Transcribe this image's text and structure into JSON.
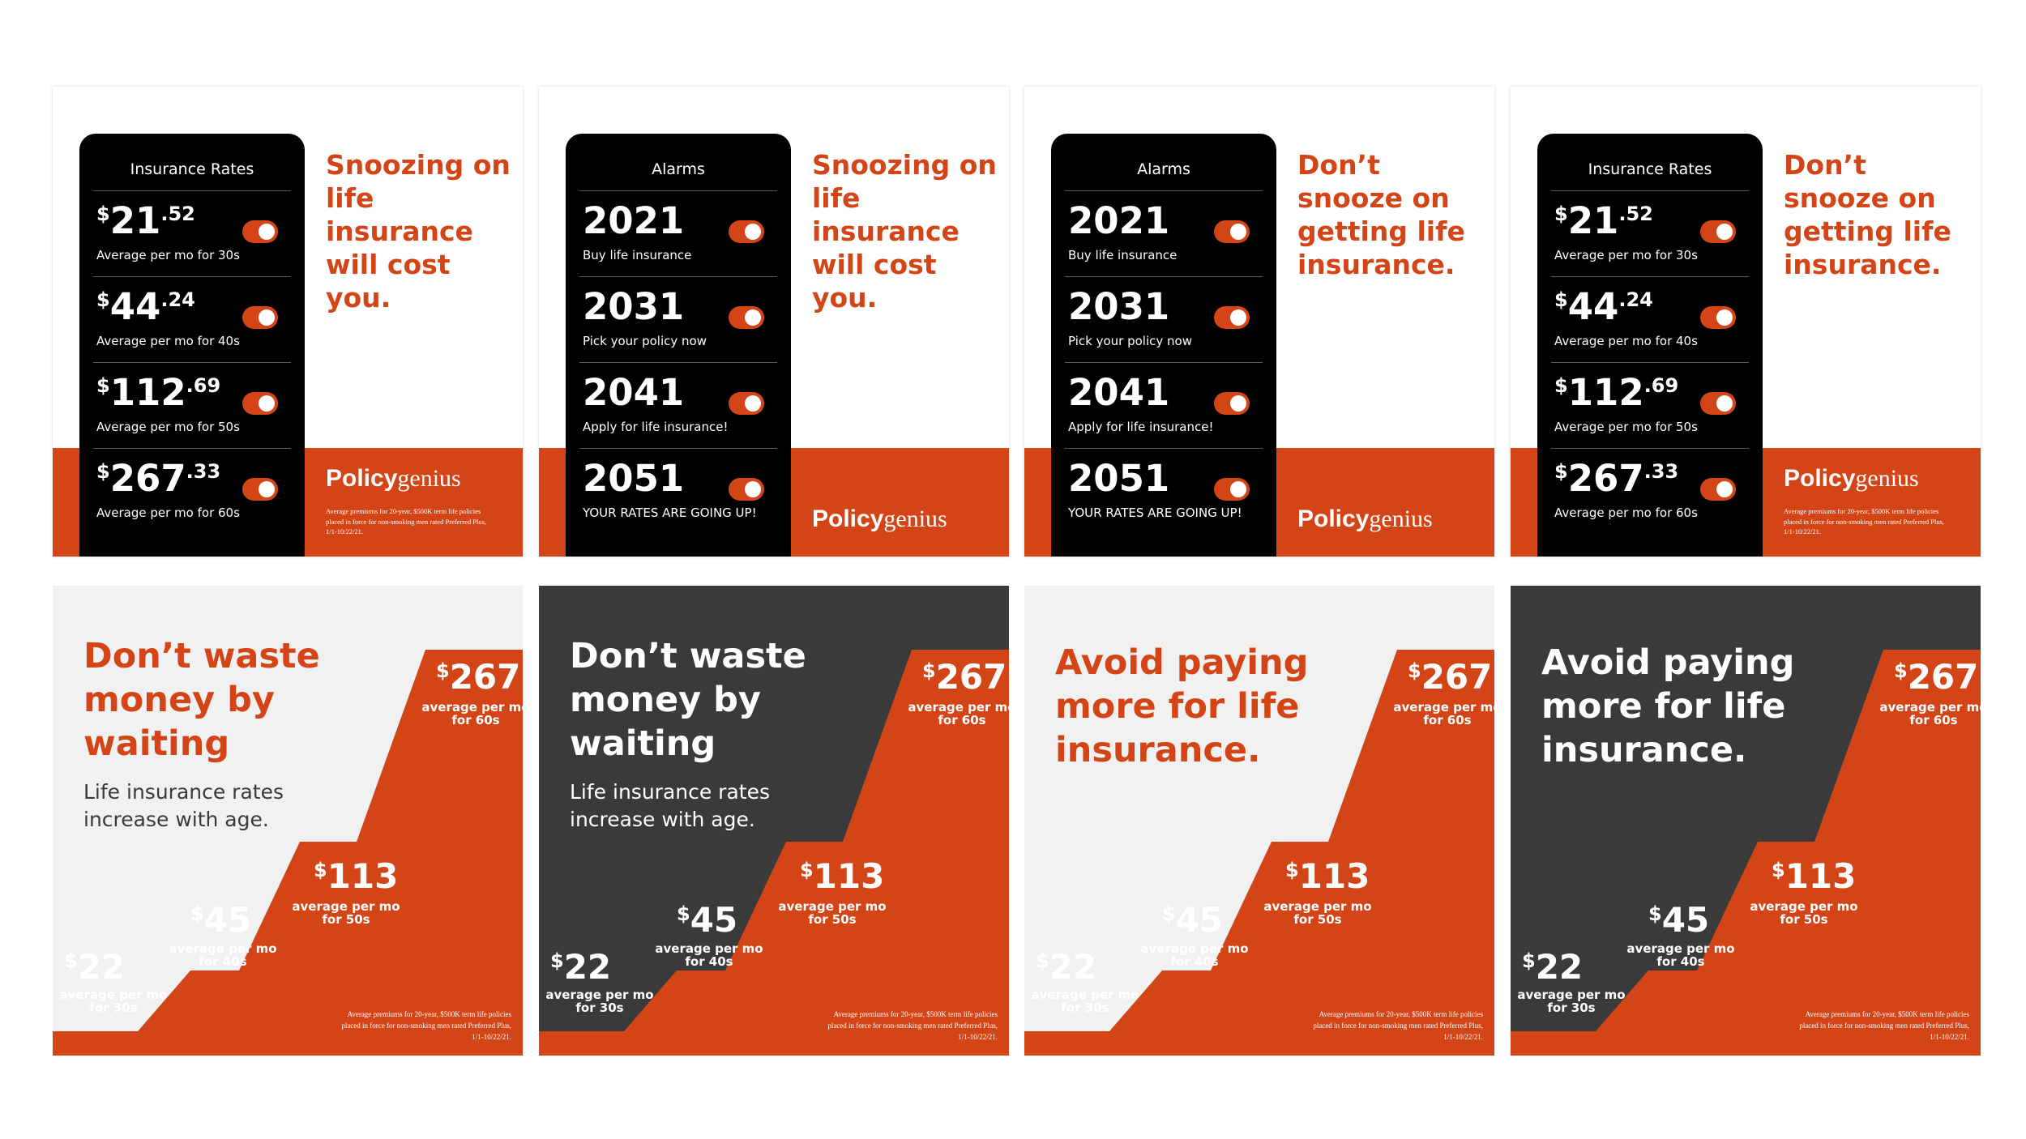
{
  "colors": {
    "orange": "#d34516",
    "black": "#000000",
    "charcoal": "#3a3a3a",
    "light_gray": "#f1f1f1",
    "white": "#ffffff"
  },
  "logo": {
    "bold": "Policy",
    "light": "genius"
  },
  "phone_disclaimer": "Average premiums for 20-year, $500K term life policies placed in force for non-smoking men rated Preferred Plus, 1/1-10/22/21.",
  "stairs_disclaimer": "Average premiums for 20-year, $500K term life policies placed in force for non-smoking men rated Preferred Plus, 1/1-10/22/21.",
  "ads_top": [
    {
      "phone_title": "Insurance Rates",
      "headline": "Snoozing on life insurance will cost you.",
      "rows": [
        {
          "main": "21",
          "cents": ".52",
          "sub": "Average per mo for 30s"
        },
        {
          "main": "44",
          "cents": ".24",
          "sub": "Average per mo for 40s"
        },
        {
          "main": "112",
          "cents": ".69",
          "sub": "Average per mo for 50s"
        },
        {
          "main": "267",
          "cents": ".33",
          "sub": "Average per mo for 60s"
        }
      ]
    },
    {
      "phone_title": "Alarms",
      "headline": "Snoozing on life insurance will cost you.",
      "rows": [
        {
          "main": "2021",
          "sub": "Buy life insurance"
        },
        {
          "main": "2031",
          "sub": "Pick your policy now"
        },
        {
          "main": "2041",
          "sub": "Apply for life insurance!"
        },
        {
          "main": "2051",
          "sub": "YOUR RATES ARE GOING UP!"
        }
      ]
    },
    {
      "phone_title": "Alarms",
      "headline": "Don’t snooze on getting life insurance.",
      "rows": [
        {
          "main": "2021",
          "sub": "Buy life insurance"
        },
        {
          "main": "2031",
          "sub": "Pick your policy now"
        },
        {
          "main": "2041",
          "sub": "Apply for life insurance!"
        },
        {
          "main": "2051",
          "sub": "YOUR RATES ARE GOING UP!"
        }
      ]
    },
    {
      "phone_title": "Insurance Rates",
      "headline": "Don’t snooze on getting life insurance.",
      "rows": [
        {
          "main": "21",
          "cents": ".52",
          "sub": "Average per mo for 30s"
        },
        {
          "main": "44",
          "cents": ".24",
          "sub": "Average per mo for 40s"
        },
        {
          "main": "112",
          "cents": ".69",
          "sub": "Average per mo for 50s"
        },
        {
          "main": "267",
          "cents": ".33",
          "sub": "Average per mo for 60s"
        }
      ]
    }
  ],
  "ads_bottom": [
    {
      "theme": "light",
      "headline": "Don’t waste money by waiting",
      "subhead": "Life insurance rates increase with age."
    },
    {
      "theme": "dark",
      "headline": "Don’t waste money by waiting",
      "subhead": "Life insurance rates increase with age."
    },
    {
      "theme": "light",
      "headline": "Avoid paying more for life insurance.",
      "subhead": ""
    },
    {
      "theme": "dark",
      "headline": "Avoid paying more for life insurance.",
      "subhead": ""
    }
  ],
  "stairs_prices": [
    {
      "amount": "22",
      "label": "average per mo for 30s"
    },
    {
      "amount": "45",
      "label": "average per mo for 40s"
    },
    {
      "amount": "113",
      "label": "average per mo for 50s"
    },
    {
      "amount": "267",
      "label": "average per mo for 60s"
    }
  ]
}
